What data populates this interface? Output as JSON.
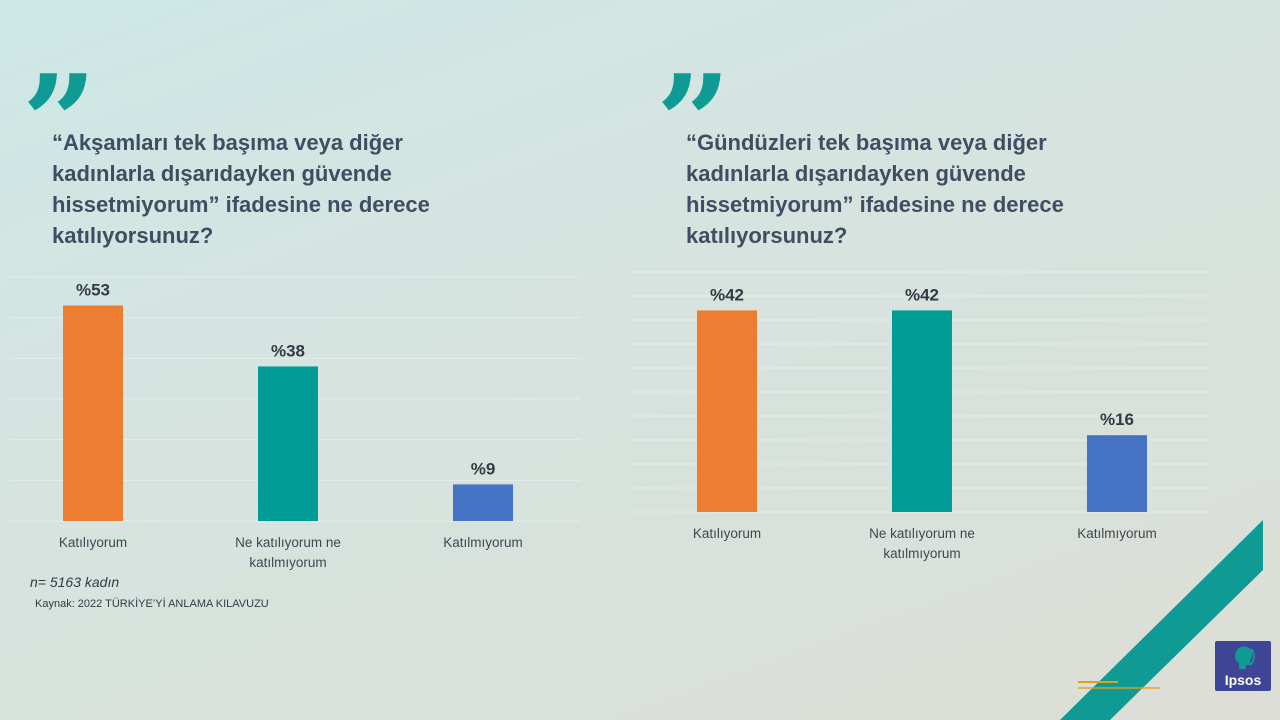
{
  "colors": {
    "accent_teal": "#0f9a94",
    "bar_orange": "#ed7d31",
    "bar_teal": "#009b95",
    "bar_blue": "#4472c4",
    "title_text": "#3f4e63"
  },
  "left": {
    "question": "“Akşamları tek başıma veya diğer\nkadınlarla dışarıdayken güvende\nhissetmiyorum” ifadesine ne derece\nkatılıyorsunuz?",
    "sample_note": "n= 5163 kadın",
    "source_note": "Kaynak: 2022 TÜRKİYE’Yİ ANLAMA  KILAVUZU"
  },
  "right": {
    "question": "“Gündüzleri tek başıma veya diğer\nkadınlarla dışarıdayken güvende\nhissetmiyorum” ifadesine ne derece\nkatılıyorsunuz?"
  },
  "logo": {
    "text": "Ipsos",
    "icon": "ipsos-head-icon"
  },
  "chart_data": [
    {
      "type": "bar",
      "categories": [
        "Katılıyorum",
        "Ne katılıyorum ne\nkatılmıyorum",
        "Katılmıyorum"
      ],
      "values": [
        53,
        38,
        9
      ],
      "data_labels": [
        "%53",
        "%38",
        "%9"
      ],
      "bar_colors": [
        "#ed7d31",
        "#009b95",
        "#4472c4"
      ],
      "ylim": [
        0,
        60
      ],
      "grid": true,
      "title": "",
      "xlabel": "",
      "ylabel": ""
    },
    {
      "type": "bar",
      "categories": [
        "Katılıyorum",
        "Ne katılıyorum ne\nkatılmıyorum",
        "Katılmıyorum"
      ],
      "values": [
        42,
        42,
        16
      ],
      "data_labels": [
        "%42",
        "%42",
        "%16"
      ],
      "bar_colors": [
        "#ed7d31",
        "#009b95",
        "#4472c4"
      ],
      "ylim": [
        0,
        50
      ],
      "grid": true,
      "title": "",
      "xlabel": "",
      "ylabel": ""
    }
  ]
}
